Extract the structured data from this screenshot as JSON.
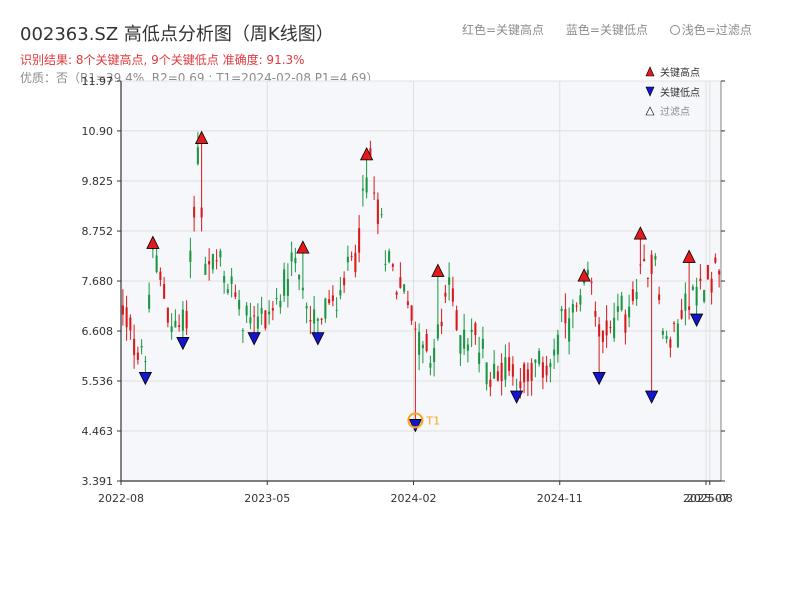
{
  "header": {
    "title": "002363.SZ 高低点分析图（周K线图）",
    "result": "识别结果: 8个关键高点, 9个关键低点  准确度: 91.3%",
    "quality": "优质：否（R1=39.4%, R2=0.69 ; T1=2024-02-08 P1=4.69）"
  },
  "top_legend": {
    "red": "红色=关键高点",
    "blue": "蓝色=关键低点",
    "light": "浅色=过滤点"
  },
  "colors": {
    "up": "#d7191c",
    "down": "#1a9641",
    "high_marker": "#e31a1c",
    "low_marker": "#1515cc",
    "t1": "#f5a623",
    "plot_bg": "#f5f7fa",
    "grid": "#e0e0e0",
    "axis": "#333333"
  },
  "chart_data": {
    "type": "candlestick",
    "ylim": [
      3.391,
      11.97
    ],
    "yticks": [
      "3.391",
      "4.463",
      "5.536",
      "6.608",
      "7.680",
      "8.752",
      "9.825",
      "10.90",
      "11.97"
    ],
    "xticks": [
      {
        "label": "2022-08",
        "week": 0
      },
      {
        "label": "2023-05",
        "week": 39
      },
      {
        "label": "2024-02",
        "week": 78
      },
      {
        "label": "2024-11",
        "week": 117
      },
      {
        "label": "2025-07",
        "week": 156
      },
      {
        "label": "2025-08",
        "week": 157
      }
    ],
    "week_count": 160,
    "legend": {
      "high": "关键高点",
      "low": "关键低点",
      "filtered": "过滤点",
      "placement": "top-right"
    },
    "t1_label": "T1",
    "anchors": [
      [
        0,
        7.0
      ],
      [
        4,
        6.2
      ],
      [
        6,
        6.0
      ],
      [
        8,
        8.2
      ],
      [
        14,
        6.6
      ],
      [
        17,
        6.9
      ],
      [
        20,
        10.4
      ],
      [
        22,
        8.0
      ],
      [
        26,
        8.0
      ],
      [
        30,
        7.3
      ],
      [
        34,
        6.8
      ],
      [
        38,
        7.0
      ],
      [
        42,
        7.2
      ],
      [
        46,
        8.1
      ],
      [
        50,
        6.8
      ],
      [
        54,
        7.0
      ],
      [
        57,
        7.2
      ],
      [
        62,
        8.3
      ],
      [
        66,
        10.2
      ],
      [
        70,
        8.2
      ],
      [
        74,
        7.6
      ],
      [
        78,
        6.8
      ],
      [
        82,
        5.9
      ],
      [
        84,
        6.4
      ],
      [
        87,
        7.6
      ],
      [
        90,
        6.5
      ],
      [
        94,
        6.5
      ],
      [
        98,
        5.7
      ],
      [
        103,
        5.9
      ],
      [
        106,
        5.5
      ],
      [
        110,
        5.7
      ],
      [
        114,
        6.0
      ],
      [
        118,
        6.8
      ],
      [
        122,
        7.0
      ],
      [
        124,
        7.6
      ],
      [
        128,
        6.5
      ],
      [
        132,
        6.8
      ],
      [
        136,
        7.2
      ],
      [
        140,
        8.0
      ],
      [
        142,
        8.4
      ],
      [
        144,
        6.5
      ],
      [
        146,
        6.3
      ],
      [
        150,
        7.2
      ],
      [
        154,
        7.5
      ],
      [
        156,
        7.9
      ],
      [
        160,
        7.9
      ]
    ],
    "key_highs": [
      {
        "week": 8,
        "price": 8.4
      },
      {
        "week": 21,
        "price": 10.65
      },
      {
        "week": 48,
        "price": 8.3
      },
      {
        "week": 65,
        "price": 10.3
      },
      {
        "week": 84,
        "price": 7.8
      },
      {
        "week": 123,
        "price": 7.7
      },
      {
        "week": 138,
        "price": 8.6
      },
      {
        "week": 151,
        "price": 8.1
      }
    ],
    "key_lows": [
      {
        "week": 6,
        "price": 5.7
      },
      {
        "week": 16,
        "price": 6.45
      },
      {
        "week": 35,
        "price": 6.55
      },
      {
        "week": 52,
        "price": 6.55
      },
      {
        "week": 78,
        "price": 4.69,
        "t1": true
      },
      {
        "week": 105,
        "price": 5.3
      },
      {
        "week": 127,
        "price": 5.7
      },
      {
        "week": 141,
        "price": 5.3
      },
      {
        "week": 153,
        "price": 6.95
      }
    ]
  }
}
